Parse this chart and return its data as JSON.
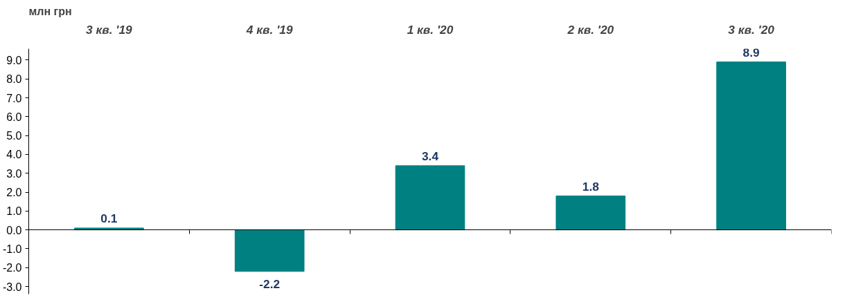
{
  "chart_data": {
    "type": "bar",
    "ylabel": "млн грн",
    "categories": [
      "3 кв. '19",
      "4 кв. '19",
      "1 кв. '20",
      "2 кв. '20",
      "3 кв. '20"
    ],
    "values": [
      0.1,
      -2.2,
      3.4,
      1.8,
      8.9
    ],
    "color": "#008080",
    "ylim": [
      -3.4,
      9.6
    ],
    "yticks": [
      {
        "value": -3,
        "label": "-3.0"
      },
      {
        "value": -2,
        "label": "-2.0"
      },
      {
        "value": -1,
        "label": "-1.0"
      },
      {
        "value": 0,
        "label": "0.0"
      },
      {
        "value": 1,
        "label": "1.0"
      },
      {
        "value": 2,
        "label": "2.0"
      },
      {
        "value": 3,
        "label": "3.0"
      },
      {
        "value": 4,
        "label": "4.0"
      },
      {
        "value": 5,
        "label": "5.0"
      },
      {
        "value": 6,
        "label": "6.0"
      },
      {
        "value": 7,
        "label": "7.0"
      },
      {
        "value": 8,
        "label": "8.0"
      },
      {
        "value": 9,
        "label": "9.0"
      }
    ],
    "data_labels": true
  }
}
